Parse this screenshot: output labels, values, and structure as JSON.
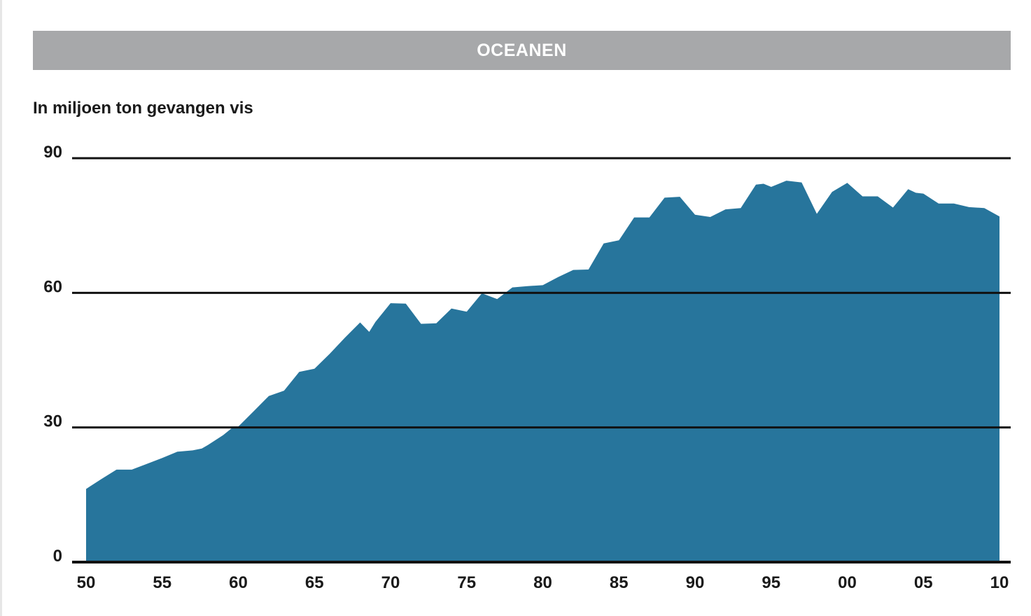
{
  "header": {
    "title": "OCEANEN"
  },
  "chart_data": {
    "type": "area",
    "title": "OCEANEN",
    "subtitle": "In miljoen ton gevangen vis",
    "xlabel": "",
    "ylabel": "",
    "color": "#27759c",
    "grid": true,
    "xlim": [
      1950,
      2010
    ],
    "ylim": [
      0,
      90
    ],
    "yticks": [
      0,
      30,
      60,
      90
    ],
    "xticks": [
      1950,
      1955,
      1960,
      1965,
      1970,
      1975,
      1980,
      1985,
      1990,
      1995,
      2000,
      2005,
      2010
    ],
    "xtick_labels": [
      "50",
      "55",
      "60",
      "65",
      "70",
      "75",
      "80",
      "85",
      "90",
      "95",
      "00",
      "05",
      "10"
    ],
    "ytick_labels": [
      "0",
      "30",
      "60",
      "90"
    ],
    "x": [
      1950,
      1951,
      1952,
      1953,
      1954,
      1955,
      1956,
      1957,
      1957.6,
      1958,
      1959,
      1959.7,
      1960,
      1961,
      1962,
      1963,
      1964,
      1965,
      1966,
      1967,
      1968,
      1968.6,
      1969,
      1970,
      1971,
      1972,
      1973,
      1974,
      1975,
      1976,
      1977,
      1978,
      1979,
      1980,
      1981,
      1982,
      1983,
      1984,
      1985,
      1986,
      1987,
      1988,
      1989,
      1990,
      1991,
      1992,
      1993,
      1994,
      1994.5,
      1995,
      1996,
      1997,
      1998,
      1999,
      2000,
      2001,
      2002,
      2003,
      2004,
      2004.5,
      2005,
      2006,
      2007,
      2008,
      2009,
      2010
    ],
    "values": [
      16.3,
      18.5,
      20.6,
      20.6,
      21.9,
      23.2,
      24.6,
      24.9,
      25.3,
      26.1,
      28.3,
      30.2,
      30.2,
      33.6,
      37.0,
      38.2,
      42.4,
      43.1,
      46.4,
      50.0,
      53.4,
      51.3,
      53.5,
      57.7,
      57.6,
      53.1,
      53.2,
      56.5,
      55.8,
      59.9,
      58.6,
      61.2,
      61.5,
      61.7,
      63.5,
      65.1,
      65.2,
      71.0,
      71.7,
      76.8,
      76.8,
      81.2,
      81.4,
      77.4,
      76.9,
      78.6,
      78.9,
      84.1,
      84.3,
      83.6,
      85.0,
      84.6,
      77.6,
      82.5,
      84.5,
      81.5,
      81.5,
      79.0,
      83.1,
      82.3,
      82.1,
      79.9,
      79.9,
      79.1,
      78.9,
      77.0
    ]
  }
}
